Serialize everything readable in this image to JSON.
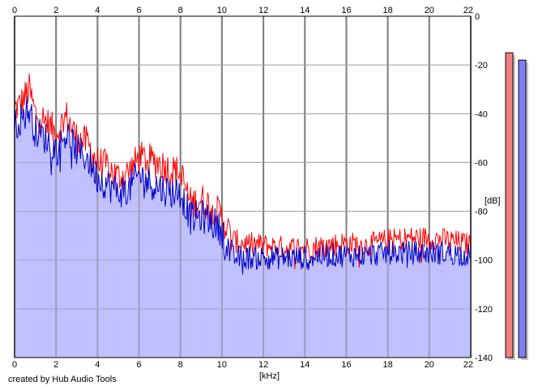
{
  "chart_data": {
    "type": "area",
    "xlabel": "[kHz]",
    "ylabel": "[dB]",
    "xlim": [
      0,
      22
    ],
    "ylim": [
      -140,
      0
    ],
    "x_ticks_top": [
      0,
      2,
      4,
      6,
      8,
      10,
      12,
      14,
      16,
      18,
      20,
      22
    ],
    "x_ticks_bottom": [
      0,
      2,
      4,
      6,
      8,
      10,
      12,
      14,
      16,
      18,
      20,
      22
    ],
    "y_ticks": [
      0,
      -20,
      -40,
      -60,
      -80,
      -100,
      -120,
      -140
    ],
    "grid": true,
    "series": [
      {
        "color": "#ff0000",
        "x": [
          0,
          0.3,
          0.7,
          1.0,
          1.5,
          2.0,
          2.5,
          3.0,
          3.5,
          4.0,
          4.5,
          5.0,
          5.5,
          6.0,
          6.5,
          7.0,
          7.5,
          8.0,
          8.5,
          9.0,
          9.5,
          10.0,
          10.5,
          11.0,
          12.0,
          13.0,
          14.0,
          15.0,
          16.0,
          17.0,
          18.0,
          19.0,
          20.0,
          21.0,
          22.0
        ],
        "values": [
          -38,
          -36,
          -30,
          -40,
          -43,
          -48,
          -41,
          -50,
          -52,
          -60,
          -62,
          -66,
          -64,
          -58,
          -59,
          -60,
          -63,
          -64,
          -77,
          -75,
          -78,
          -82,
          -92,
          -93,
          -94,
          -95,
          -95,
          -94,
          -93,
          -94,
          -92,
          -91,
          -91,
          -92,
          -94
        ]
      },
      {
        "color": "#0000c8",
        "x": [
          0,
          0.3,
          0.7,
          1.0,
          1.5,
          2.0,
          2.5,
          3.0,
          3.5,
          4.0,
          4.5,
          5.0,
          5.5,
          6.0,
          6.5,
          7.0,
          7.5,
          8.0,
          8.5,
          9.0,
          9.5,
          10.0,
          10.5,
          11.0,
          12.0,
          13.0,
          14.0,
          15.0,
          16.0,
          17.0,
          18.0,
          19.0,
          20.0,
          21.0,
          22.0
        ],
        "values": [
          -45,
          -42,
          -38,
          -47,
          -50,
          -55,
          -48,
          -55,
          -58,
          -66,
          -69,
          -72,
          -71,
          -65,
          -68,
          -70,
          -72,
          -72,
          -83,
          -82,
          -84,
          -88,
          -99,
          -99,
          -99,
          -99,
          -99,
          -98,
          -98,
          -98,
          -97,
          -97,
          -97,
          -97,
          -98
        ]
      }
    ],
    "level_meters": [
      {
        "color": "#f08080",
        "level_db": -15
      },
      {
        "color": "#8080f0",
        "level_db": -18
      }
    ]
  },
  "footer": {
    "credit": "created by Hub Audio Tools"
  }
}
